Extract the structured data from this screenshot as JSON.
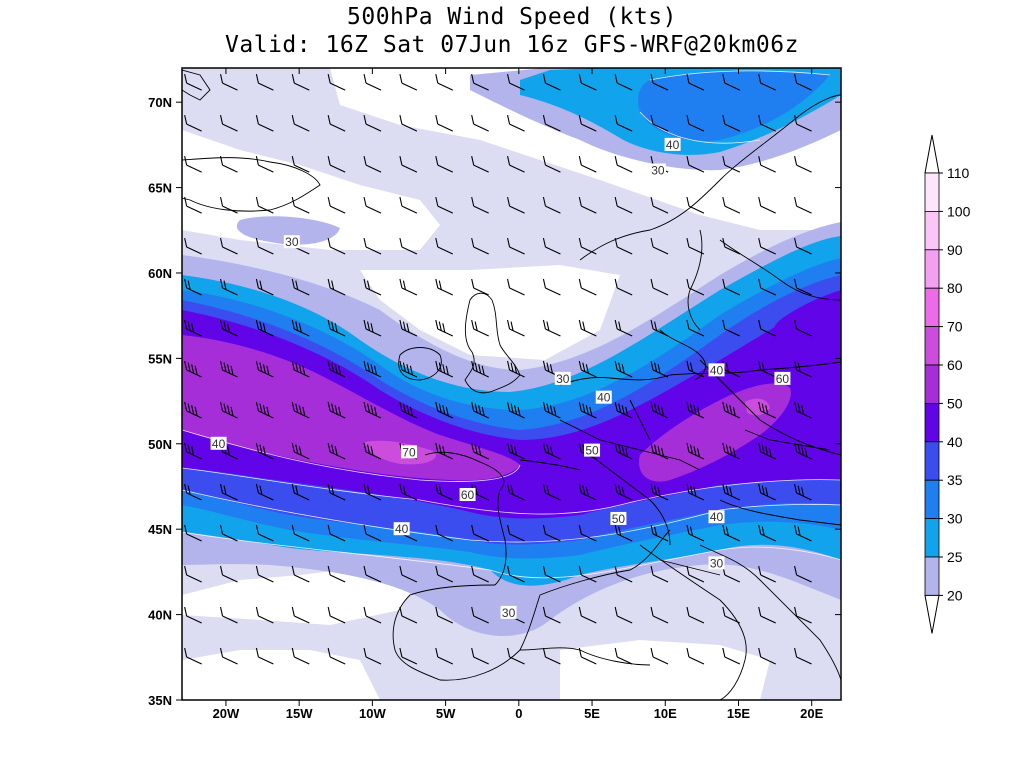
{
  "title": {
    "line1": "500hPa Wind Speed (kts)",
    "line2": "Valid: 16Z Sat 07Jun 16z GFS-WRF@20km06z"
  },
  "map": {
    "lon_range": [
      -23,
      22
    ],
    "lat_range": [
      35,
      72
    ],
    "lat_ticks": [
      "70N",
      "65N",
      "60N",
      "55N",
      "50N",
      "45N",
      "40N",
      "35N"
    ],
    "lon_ticks": [
      "20W",
      "15W",
      "10W",
      "5W",
      "0",
      "5E",
      "10E",
      "15E",
      "20E"
    ]
  },
  "contour_labels": [
    {
      "text": "40",
      "lon": 10.5,
      "lat": 67.5
    },
    {
      "text": "30",
      "lon": 9.5,
      "lat": 66.0
    },
    {
      "text": "30",
      "lon": -15.5,
      "lat": 61.8
    },
    {
      "text": "40",
      "lon": 13.5,
      "lat": 54.3
    },
    {
      "text": "60",
      "lon": 18.0,
      "lat": 53.8
    },
    {
      "text": "30",
      "lon": 3.0,
      "lat": 53.8
    },
    {
      "text": "40",
      "lon": 5.8,
      "lat": 52.7
    },
    {
      "text": "40",
      "lon": -20.5,
      "lat": 50.0
    },
    {
      "text": "70",
      "lon": -7.5,
      "lat": 49.5
    },
    {
      "text": "50",
      "lon": 5.0,
      "lat": 49.6
    },
    {
      "text": "60",
      "lon": -3.5,
      "lat": 47.0
    },
    {
      "text": "50",
      "lon": 6.8,
      "lat": 45.6
    },
    {
      "text": "40",
      "lon": -8.0,
      "lat": 45.0
    },
    {
      "text": "40",
      "lon": 13.5,
      "lat": 45.7
    },
    {
      "text": "30",
      "lon": 13.5,
      "lat": 43.0
    },
    {
      "text": "30",
      "lon": -0.7,
      "lat": 40.1
    }
  ],
  "colorbar": {
    "levels": [
      "110",
      "100",
      "90",
      "80",
      "70",
      "60",
      "50",
      "40",
      "35",
      "30",
      "25",
      "20"
    ],
    "colors": [
      "#fde6fb",
      "#fbc6f7",
      "#f4a0f2",
      "#ec6be8",
      "#cc4ddd",
      "#a52ed9",
      "#6204e8",
      "#3c4df0",
      "#1f7ff0",
      "#11a4ec",
      "#b3b4ec",
      "#dcdcf2"
    ]
  },
  "fill_colors": {
    "c20": "#dcdcf2",
    "c25": "#b3b4ec",
    "c30": "#11a4ec",
    "c35": "#1f7ff0",
    "c40": "#3c4df0",
    "c50": "#6204e8",
    "c60": "#a52ed9",
    "c70": "#cc4ddd",
    "c80": "#ec6be8"
  }
}
